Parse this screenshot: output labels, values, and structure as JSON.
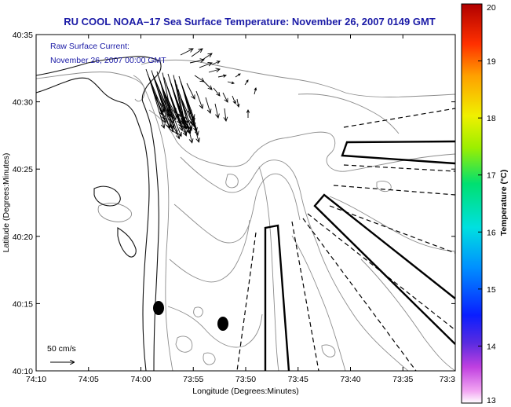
{
  "title": "RU COOL  NOAA–17  Sea Surface Temperature:  November 26, 2007 0149 GMT",
  "annotation": {
    "line1": "Raw Surface Current:",
    "line2": "November 26, 2007 00:00 GMT"
  },
  "scale_label": "50 cm/s",
  "axes": {
    "xlabel": "Longitude (Degrees:Minutes)",
    "ylabel": "Latitude (Degrees:Minutes)",
    "x_ticks": [
      "74:10",
      "74:05",
      "74:00",
      "73:55",
      "73:50",
      "73:45",
      "73:40",
      "73:35",
      "73:3"
    ],
    "y_ticks": [
      "40:35",
      "40:30",
      "40:25",
      "40:20",
      "40:15",
      "40:10"
    ]
  },
  "colorbar": {
    "label": "Temperature (°C)",
    "ticks": [
      "20",
      "19",
      "18",
      "17",
      "16",
      "15",
      "14",
      "13"
    ],
    "min": 13,
    "max": 20
  },
  "colors": {
    "title": "#1a1aa6",
    "vectors": "#000000",
    "contours": "#8c8c8c"
  }
}
